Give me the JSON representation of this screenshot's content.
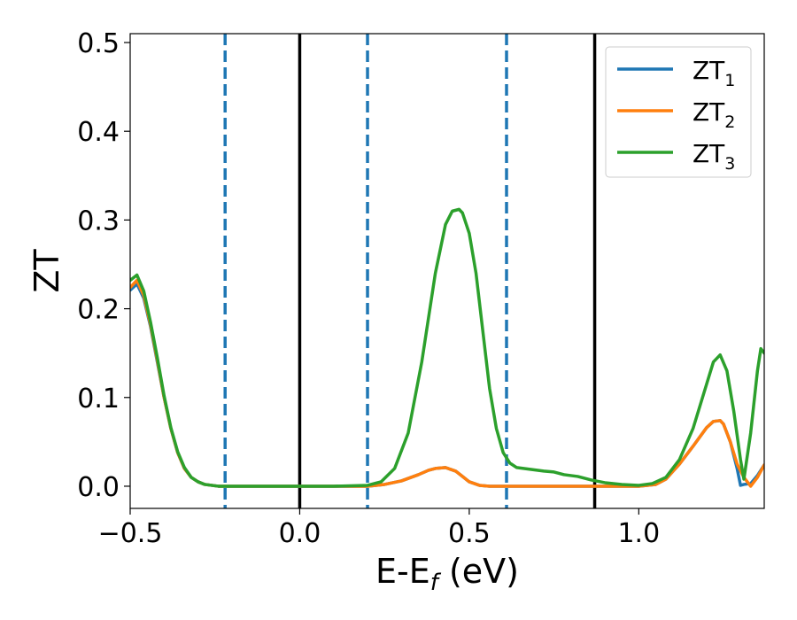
{
  "chart_data": {
    "type": "line",
    "xlabel": "E-E",
    "xlabel_sub": "f",
    "xlabel_suffix": " (eV)",
    "ylabel": "ZT",
    "xlim": [
      -0.5,
      1.37
    ],
    "ylim": [
      -0.025,
      0.51
    ],
    "xticks": [
      -0.5,
      0.0,
      0.5,
      1.0
    ],
    "xtick_labels": [
      "−0.5",
      "0.0",
      "0.5",
      "1.0"
    ],
    "yticks": [
      0.0,
      0.1,
      0.2,
      0.3,
      0.4,
      0.5
    ],
    "ytick_labels": [
      "0.0",
      "0.1",
      "0.2",
      "0.3",
      "0.4",
      "0.5"
    ],
    "grid": false,
    "legend_position": "top-right",
    "vlines": [
      {
        "x": -0.22,
        "style": "dashed",
        "color": "#1f77b4"
      },
      {
        "x": 0.0,
        "style": "solid",
        "color": "#000000"
      },
      {
        "x": 0.2,
        "style": "dashed",
        "color": "#1f77b4"
      },
      {
        "x": 0.61,
        "style": "dashed",
        "color": "#1f77b4"
      },
      {
        "x": 0.87,
        "style": "solid",
        "color": "#000000"
      }
    ],
    "series": [
      {
        "name": "ZT",
        "sub": "1",
        "color": "#1f77b4",
        "x": [
          -0.5,
          -0.48,
          -0.46,
          -0.44,
          -0.42,
          -0.4,
          -0.38,
          -0.36,
          -0.34,
          -0.32,
          -0.3,
          -0.28,
          -0.26,
          -0.24,
          -0.22,
          -0.18,
          -0.1,
          0.0,
          0.1,
          0.2,
          0.25,
          0.3,
          0.35,
          0.38,
          0.4,
          0.43,
          0.46,
          0.48,
          0.5,
          0.53,
          0.56,
          0.6,
          0.7,
          0.8,
          0.9,
          1.0,
          1.05,
          1.08,
          1.12,
          1.16,
          1.2,
          1.22,
          1.24,
          1.25,
          1.27,
          1.29,
          1.3,
          1.31,
          1.33,
          1.35,
          1.37
        ],
        "y": [
          0.221,
          0.228,
          0.212,
          0.18,
          0.14,
          0.1,
          0.065,
          0.038,
          0.02,
          0.01,
          0.005,
          0.002,
          0.001,
          0.0,
          0.0,
          0.0,
          0.0,
          0.0,
          0.0,
          0.0,
          0.002,
          0.006,
          0.013,
          0.018,
          0.02,
          0.021,
          0.017,
          0.011,
          0.005,
          0.001,
          0.0,
          0.0,
          0.0,
          0.0,
          0.0,
          0.0,
          0.002,
          0.008,
          0.025,
          0.045,
          0.066,
          0.073,
          0.074,
          0.07,
          0.05,
          0.02,
          0.001,
          0.002,
          0.003,
          0.012,
          0.024
        ]
      },
      {
        "name": "ZT",
        "sub": "2",
        "color": "#ff7f0e",
        "x": [
          -0.5,
          -0.48,
          -0.46,
          -0.44,
          -0.42,
          -0.4,
          -0.38,
          -0.36,
          -0.34,
          -0.32,
          -0.3,
          -0.28,
          -0.26,
          -0.24,
          -0.22,
          -0.18,
          -0.1,
          0.0,
          0.1,
          0.2,
          0.25,
          0.3,
          0.35,
          0.38,
          0.4,
          0.43,
          0.46,
          0.48,
          0.5,
          0.53,
          0.56,
          0.6,
          0.7,
          0.8,
          0.9,
          1.0,
          1.05,
          1.08,
          1.12,
          1.16,
          1.2,
          1.22,
          1.24,
          1.25,
          1.27,
          1.29,
          1.31,
          1.33,
          1.35,
          1.37
        ],
        "y": [
          0.224,
          0.232,
          0.215,
          0.182,
          0.142,
          0.1,
          0.065,
          0.038,
          0.02,
          0.01,
          0.005,
          0.002,
          0.001,
          0.0,
          0.0,
          0.0,
          0.0,
          0.0,
          0.0,
          0.0,
          0.002,
          0.006,
          0.013,
          0.018,
          0.02,
          0.021,
          0.017,
          0.011,
          0.005,
          0.001,
          0.0,
          0.0,
          0.0,
          0.0,
          0.0,
          0.0,
          0.002,
          0.008,
          0.025,
          0.045,
          0.066,
          0.073,
          0.074,
          0.07,
          0.05,
          0.025,
          0.01,
          0.0,
          0.01,
          0.024
        ]
      },
      {
        "name": "ZT",
        "sub": "3",
        "color": "#2ca02c",
        "x": [
          -0.5,
          -0.48,
          -0.46,
          -0.44,
          -0.42,
          -0.4,
          -0.38,
          -0.36,
          -0.34,
          -0.32,
          -0.3,
          -0.28,
          -0.26,
          -0.24,
          -0.22,
          -0.18,
          -0.1,
          0.0,
          0.1,
          0.2,
          0.24,
          0.28,
          0.32,
          0.36,
          0.4,
          0.43,
          0.45,
          0.47,
          0.48,
          0.5,
          0.52,
          0.54,
          0.56,
          0.58,
          0.6,
          0.62,
          0.64,
          0.68,
          0.72,
          0.75,
          0.78,
          0.82,
          0.86,
          0.9,
          0.95,
          1.0,
          1.04,
          1.08,
          1.12,
          1.16,
          1.2,
          1.22,
          1.24,
          1.26,
          1.28,
          1.3,
          1.31,
          1.33,
          1.35,
          1.36,
          1.37
        ],
        "y": [
          0.232,
          0.238,
          0.22,
          0.185,
          0.145,
          0.102,
          0.066,
          0.039,
          0.021,
          0.01,
          0.005,
          0.002,
          0.001,
          0.0,
          0.0,
          0.0,
          0.0,
          0.0,
          0.0,
          0.001,
          0.005,
          0.02,
          0.06,
          0.14,
          0.24,
          0.295,
          0.31,
          0.312,
          0.308,
          0.285,
          0.24,
          0.175,
          0.11,
          0.065,
          0.038,
          0.026,
          0.021,
          0.019,
          0.017,
          0.016,
          0.013,
          0.011,
          0.007,
          0.004,
          0.002,
          0.001,
          0.003,
          0.01,
          0.03,
          0.065,
          0.115,
          0.14,
          0.148,
          0.13,
          0.085,
          0.03,
          0.008,
          0.06,
          0.13,
          0.155,
          0.15
        ]
      }
    ]
  }
}
